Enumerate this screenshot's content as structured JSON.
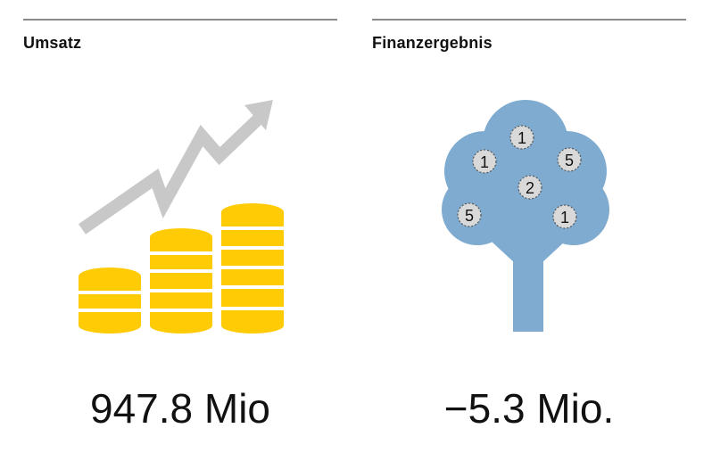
{
  "panels": {
    "revenue": {
      "heading": "Umsatz",
      "value": "947.8 Mio",
      "icon": "coin-stacks-rising-arrow-icon",
      "colors": {
        "coin": "#FFCB05",
        "coin_stripe": "#ffffff",
        "arrow": "#c8c8c8"
      }
    },
    "financial_result": {
      "heading": "Finanzergebnis",
      "value": "−5.3 Mio.",
      "icon": "money-tree-icon",
      "colors": {
        "tree": "#7EABCF",
        "coin": "#d9d9d9"
      },
      "coins": [
        "1",
        "1",
        "5",
        "2",
        "5",
        "1"
      ]
    }
  },
  "divider_color": "#8a8a8a"
}
